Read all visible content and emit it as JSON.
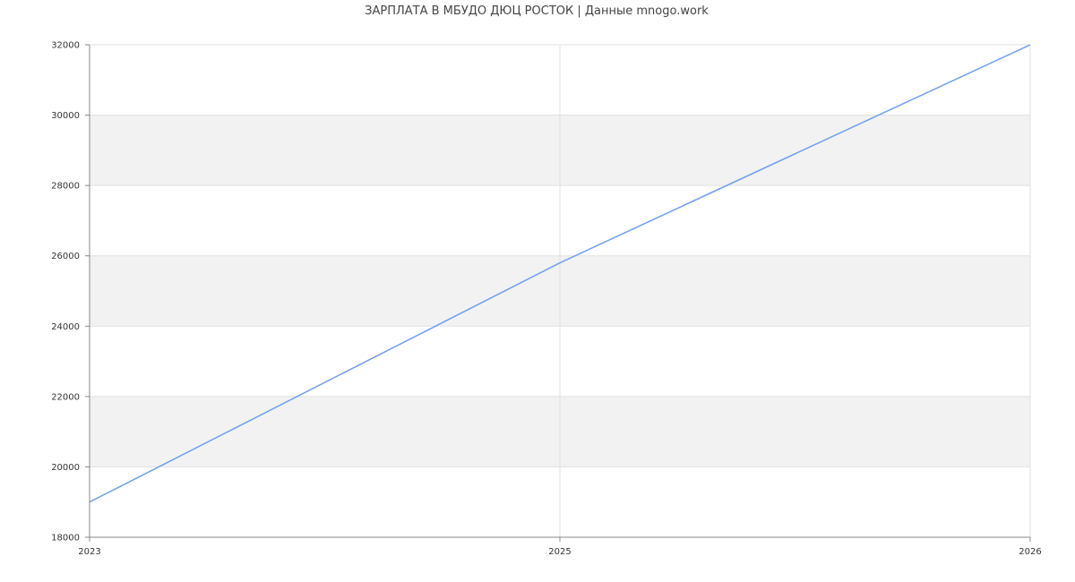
{
  "chart_data": {
    "type": "line",
    "title": "ЗАРПЛАТА В МБУДО ДЮЦ РОСТОК | Данные mnogo.work",
    "xlabel": "",
    "ylabel": "",
    "categories": [
      "2023",
      "2025",
      "2026"
    ],
    "series": [
      {
        "values": [
          19000,
          25800,
          32000
        ],
        "color": "#6f9ef0"
      }
    ],
    "ylim": [
      18000,
      32000
    ],
    "yticks": [
      18000,
      20000,
      22000,
      24000,
      26000,
      28000,
      30000,
      32000
    ],
    "grid": true,
    "band_color": "#f2f2f2",
    "grid_color": "#e0e0e0",
    "axis_color": "#888888",
    "legend": "none"
  }
}
